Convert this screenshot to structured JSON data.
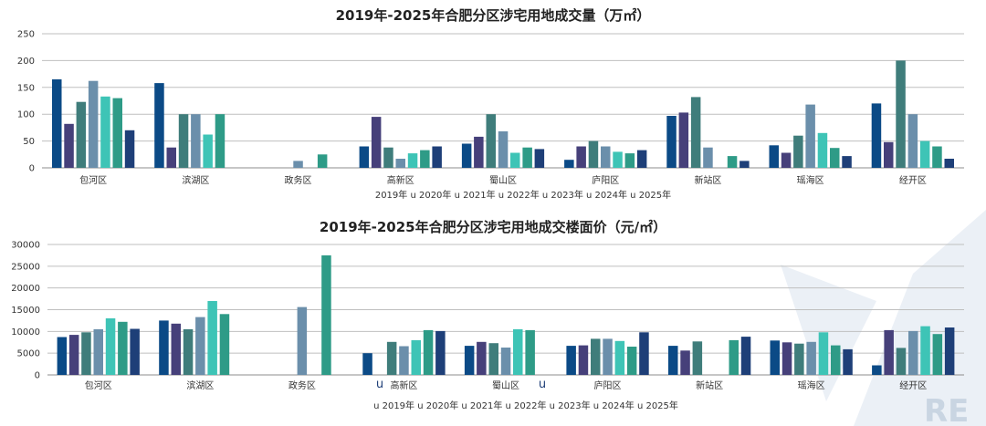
{
  "series_colors": [
    "#0b4a86",
    "#46407a",
    "#3f7d7b",
    "#6b8fab",
    "#3ec4b6",
    "#2e9b87",
    "#1e3f78"
  ],
  "chart_data": [
    {
      "type": "bar",
      "title": "2019年-2025年合肥分区涉宅用地成交量（万㎡）",
      "categories": [
        "包河区",
        "滨湖区",
        "政务区",
        "高新区",
        "蜀山区",
        "庐阳区",
        "新站区",
        "瑶海区",
        "经开区"
      ],
      "ylim": [
        0,
        250
      ],
      "yticks": [
        "0",
        "50",
        "100",
        "150",
        "200",
        "250"
      ],
      "legend_text": "2019年 u 2020年 u 2021年 u 2022年 u 2023年 u 2024年 u 2025年",
      "series": [
        {
          "name": "2019年",
          "values": [
            165,
            158,
            0,
            40,
            45,
            15,
            97,
            42,
            120
          ]
        },
        {
          "name": "2020年",
          "values": [
            82,
            38,
            0,
            95,
            58,
            40,
            103,
            28,
            48
          ]
        },
        {
          "name": "2021年",
          "values": [
            123,
            100,
            0,
            38,
            100,
            50,
            132,
            60,
            200
          ]
        },
        {
          "name": "2022年",
          "values": [
            162,
            100,
            13,
            17,
            68,
            40,
            38,
            118,
            100
          ]
        },
        {
          "name": "2023年",
          "values": [
            133,
            62,
            0,
            27,
            28,
            30,
            0,
            65,
            50
          ]
        },
        {
          "name": "2024年",
          "values": [
            130,
            100,
            25,
            33,
            38,
            27,
            22,
            37,
            40
          ]
        },
        {
          "name": "2025年",
          "values": [
            70,
            0,
            0,
            40,
            35,
            33,
            13,
            22,
            17
          ]
        }
      ]
    },
    {
      "type": "bar",
      "title": "2019年-2025年合肥分区涉宅用地成交楼面价（元/㎡）",
      "categories": [
        "包河区",
        "滨湖区",
        "政务区",
        "高新区",
        "蜀山区",
        "庐阳区",
        "新站区",
        "瑶海区",
        "经开区"
      ],
      "ylim": [
        0,
        30000
      ],
      "yticks": [
        "0",
        "5000",
        "10000",
        "15000",
        "20000",
        "25000",
        "30000"
      ],
      "legend_text": "u 2019年 u 2020年 u 2021年 u 2022年 u 2023年 u 2024年 u 2025年",
      "stray_marks": [
        "u",
        "u"
      ],
      "series": [
        {
          "name": "2019年",
          "values": [
            8700,
            12500,
            0,
            5000,
            6700,
            6700,
            6700,
            7900,
            2200
          ]
        },
        {
          "name": "2020年",
          "values": [
            9200,
            11800,
            0,
            0,
            7600,
            6800,
            5600,
            7500,
            10300
          ]
        },
        {
          "name": "2021年",
          "values": [
            9800,
            10500,
            0,
            7600,
            7300,
            8300,
            7700,
            7200,
            6200
          ]
        },
        {
          "name": "2022年",
          "values": [
            10500,
            13300,
            15600,
            6600,
            6300,
            8300,
            0,
            7600,
            10100
          ]
        },
        {
          "name": "2023年",
          "values": [
            13000,
            17000,
            0,
            8000,
            10500,
            7800,
            0,
            9800,
            11200
          ]
        },
        {
          "name": "2024年",
          "values": [
            12200,
            14000,
            27500,
            10300,
            10300,
            6500,
            8000,
            6800,
            9400
          ]
        },
        {
          "name": "2025年",
          "values": [
            10600,
            0,
            0,
            10100,
            0,
            9800,
            8800,
            5900,
            10900
          ]
        }
      ]
    }
  ],
  "watermark_text": "RE"
}
